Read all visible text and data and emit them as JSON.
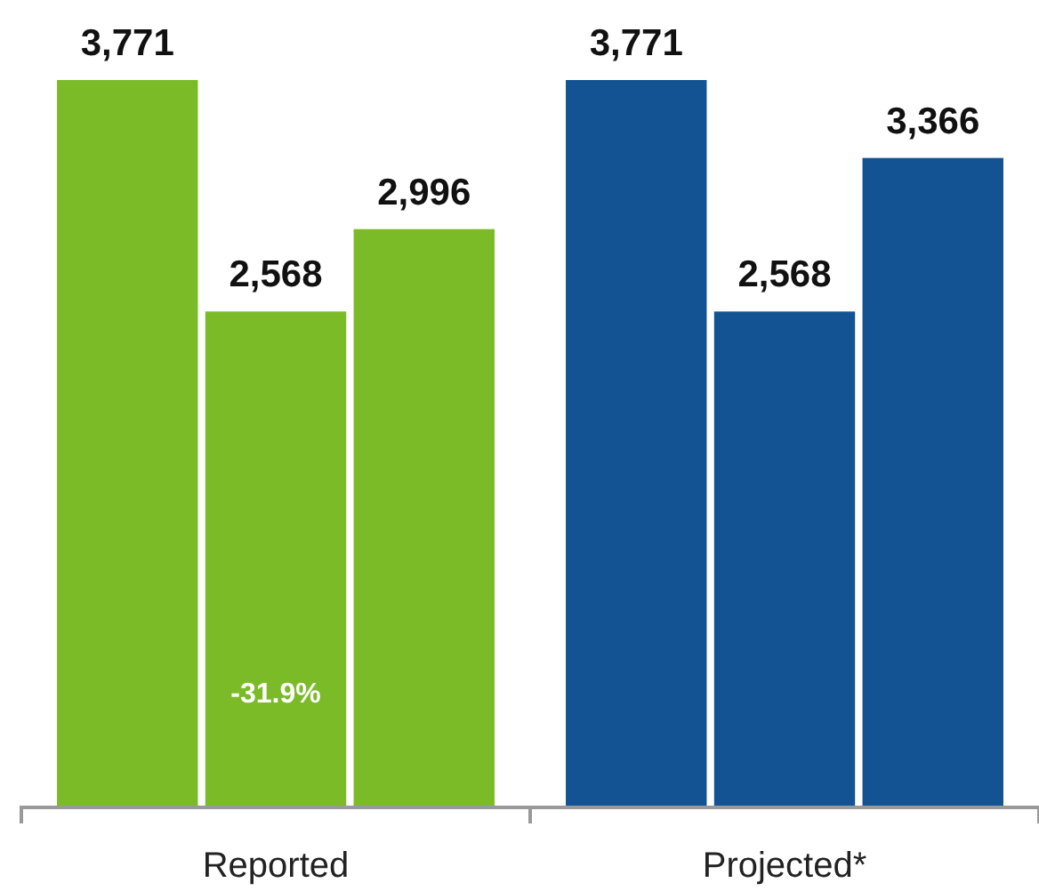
{
  "chart_data": {
    "type": "bar",
    "categories": [
      "Reported",
      "Projected*"
    ],
    "series": [
      {
        "colors": [
          "#7bbb27",
          "#135394"
        ],
        "values": [
          3771,
          3771
        ],
        "value_labels": [
          "3,771",
          "3,771"
        ]
      },
      {
        "colors": [
          "#7bbb27",
          "#135394"
        ],
        "values": [
          2568,
          2568
        ],
        "value_labels": [
          "2,568",
          "2,568"
        ]
      },
      {
        "colors": [
          "#7bbb27",
          "#135394"
        ],
        "values": [
          2996,
          3366
        ],
        "value_labels": [
          "2,996",
          "3,366"
        ]
      }
    ],
    "annotations": [
      "-31.9%"
    ]
  }
}
